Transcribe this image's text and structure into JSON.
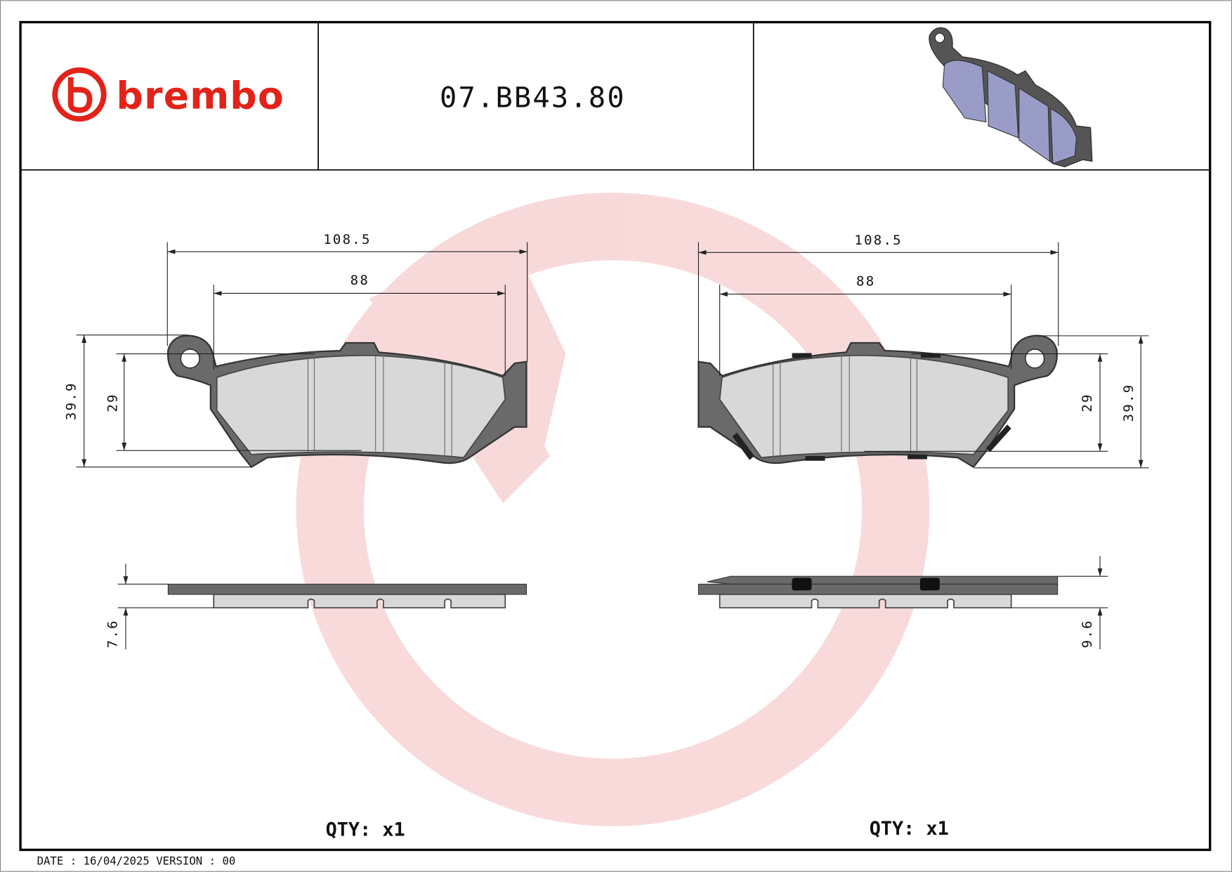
{
  "brand": {
    "name": "brembo",
    "color": "#e2231a"
  },
  "part_number": "07.BB43.80",
  "watermark_color": "#f6caca",
  "views": [
    {
      "side": "left",
      "width_total": "108.5",
      "width_friction": "88",
      "height_total": "39.9",
      "height_friction": "29",
      "thickness": "7.6",
      "qty": "QTY: x1"
    },
    {
      "side": "right",
      "width_total": "108.5",
      "width_friction": "88",
      "height_total": "39.9",
      "height_friction": "29",
      "thickness": "9.6",
      "qty": "QTY: x1"
    }
  ],
  "footer": "DATE : 16/04/2025 VERSION : 00",
  "colors": {
    "backing_plate": "#6a6a6a",
    "friction_material": "#d8d8d8",
    "iso_pad": "#9a9cc8"
  }
}
